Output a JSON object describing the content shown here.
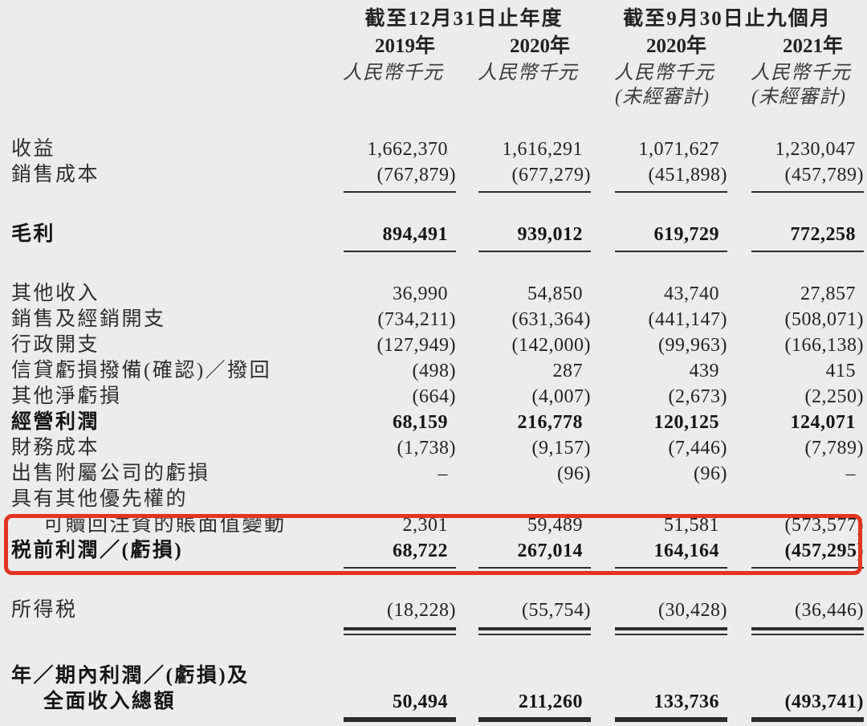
{
  "colors": {
    "background": "#ececec",
    "text": "#2b2b2b",
    "highlight_red": "#e03522"
  },
  "table": {
    "header": {
      "groups": [
        {
          "label": "截至12月31日止年度"
        },
        {
          "label": "截至9月30日止九個月"
        }
      ],
      "columns": [
        {
          "year": "2019年",
          "unit": "人民幣千元",
          "note": ""
        },
        {
          "year": "2020年",
          "unit": "人民幣千元",
          "note": ""
        },
        {
          "year": "2020年",
          "unit": "人民幣千元",
          "note": "(未經審計)"
        },
        {
          "year": "2021年",
          "unit": "人民幣千元",
          "note": "(未經審計)"
        }
      ]
    },
    "rows": [
      {
        "label": "收益",
        "values": [
          "1,662,370",
          "1,616,291",
          "1,071,627",
          "1,230,047"
        ]
      },
      {
        "label": "銷售成本",
        "values": [
          "(767,879)",
          "(677,279)",
          "(451,898)",
          "(457,789)"
        ],
        "underline": "single"
      },
      {
        "type": "spacer"
      },
      {
        "label": "毛利",
        "bold": true,
        "values": [
          "894,491",
          "939,012",
          "619,729",
          "772,258"
        ],
        "underline": "single"
      },
      {
        "type": "spacer"
      },
      {
        "label": "其他收入",
        "values": [
          "36,990",
          "54,850",
          "43,740",
          "27,857"
        ]
      },
      {
        "label": "銷售及經銷開支",
        "values": [
          "(734,211)",
          "(631,364)",
          "(441,147)",
          "(508,071)"
        ]
      },
      {
        "label": "行政開支",
        "values": [
          "(127,949)",
          "(142,000)",
          "(99,963)",
          "(166,138)"
        ]
      },
      {
        "label": "信貸虧損撥備(確認)／撥回",
        "values": [
          "(498)",
          "287",
          "439",
          "415"
        ]
      },
      {
        "label": "其他淨虧損",
        "values": [
          "(664)",
          "(4,007)",
          "(2,673)",
          "(2,250)"
        ]
      },
      {
        "label": "經營利潤",
        "bold": true,
        "values": [
          "68,159",
          "216,778",
          "120,125",
          "124,071"
        ]
      },
      {
        "label": "財務成本",
        "values": [
          "(1,738)",
          "(9,157)",
          "(7,446)",
          "(7,789)"
        ]
      },
      {
        "label": "出售附屬公司的虧損",
        "values": [
          "–",
          "(96)",
          "(96)",
          "–"
        ]
      },
      {
        "label": "具有其他優先權的",
        "values": [
          "",
          "",
          "",
          ""
        ]
      },
      {
        "label": "可贖回注資的賬面值變動",
        "indent": true,
        "values": [
          "2,301",
          "59,489",
          "51,581",
          "(573,577)"
        ]
      },
      {
        "label": "税前利潤／(虧損)",
        "bold": true,
        "values": [
          "68,722",
          "267,014",
          "164,164",
          "(457,295)"
        ],
        "underline": "single"
      },
      {
        "type": "spacer"
      },
      {
        "label": "所得税",
        "values": [
          "(18,228)",
          "(55,754)",
          "(30,428)",
          "(36,446)"
        ],
        "underline": "double"
      },
      {
        "type": "spacer"
      },
      {
        "label": "年／期內利潤／(虧損)及",
        "bold": true,
        "values": [
          "",
          "",
          "",
          ""
        ]
      },
      {
        "label": "全面收入總額",
        "bold": true,
        "indent": true,
        "values": [
          "50,494",
          "211,260",
          "133,736",
          "(493,741)"
        ],
        "underline": "thick"
      }
    ]
  },
  "annotations": {
    "highlight_box_rows": [
      "可贖回注資的賬面值變動",
      "税前利潤／(虧損)"
    ]
  }
}
